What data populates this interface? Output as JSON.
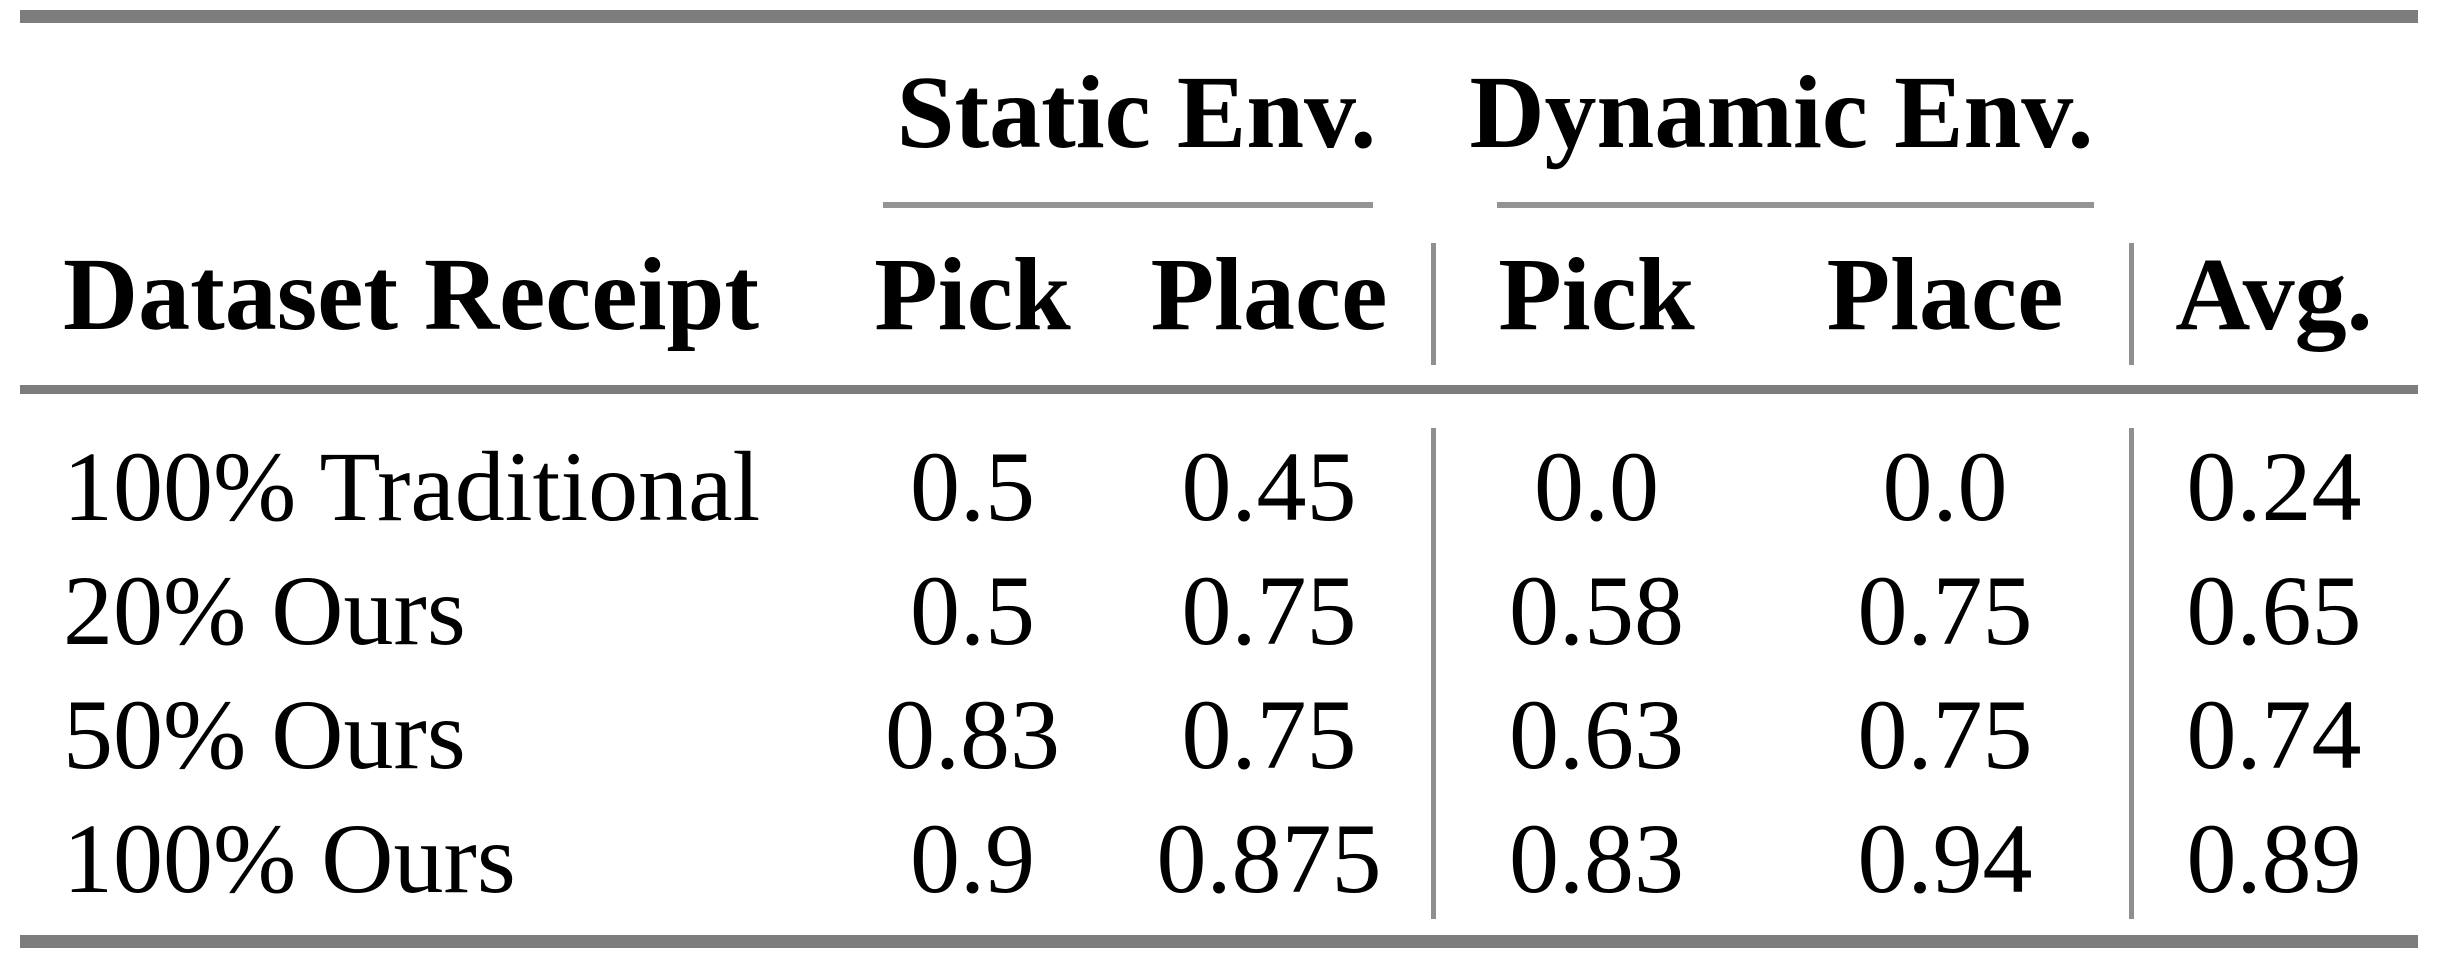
{
  "table": {
    "group_headers": [
      {
        "label": "Static Env."
      },
      {
        "label": "Dynamic Env."
      }
    ],
    "headers": [
      "Dataset Receipt",
      "Pick",
      "Place",
      "Pick",
      "Place",
      "Avg."
    ],
    "rows": [
      {
        "cells": [
          "100% Traditional",
          "0.5",
          "0.45",
          "0.0",
          "0.0",
          "0.24"
        ]
      },
      {
        "cells": [
          "20% Ours",
          "0.5",
          "0.75",
          "0.58",
          "0.75",
          "0.65"
        ]
      },
      {
        "cells": [
          "50% Ours",
          "0.83",
          "0.75",
          "0.63",
          "0.75",
          "0.74"
        ]
      },
      {
        "cells": [
          "100% Ours",
          "0.9",
          "0.875",
          "0.83",
          "0.94",
          "0.89"
        ]
      }
    ]
  },
  "chart_data": {
    "type": "table",
    "column_groups": [
      {
        "label": "Static Env.",
        "columns": [
          "Pick",
          "Place"
        ]
      },
      {
        "label": "Dynamic Env.",
        "columns": [
          "Pick",
          "Place"
        ]
      }
    ],
    "columns": [
      "Dataset Receipt",
      "Static Pick",
      "Static Place",
      "Dynamic Pick",
      "Dynamic Place",
      "Avg."
    ],
    "rows": [
      [
        "100% Traditional",
        0.5,
        0.45,
        0.0,
        0.0,
        0.24
      ],
      [
        "20% Ours",
        0.5,
        0.75,
        0.58,
        0.75,
        0.65
      ],
      [
        "50% Ours",
        0.83,
        0.75,
        0.63,
        0.75,
        0.74
      ],
      [
        "100% Ours",
        0.9,
        0.875,
        0.83,
        0.94,
        0.89
      ]
    ]
  },
  "colors": {
    "background": "#ffffff",
    "text": "#000000",
    "thick_rule_gray": "#7d7d7d",
    "thin_rule_gray": "#949494",
    "vline_gray": "#8f8f8f"
  }
}
